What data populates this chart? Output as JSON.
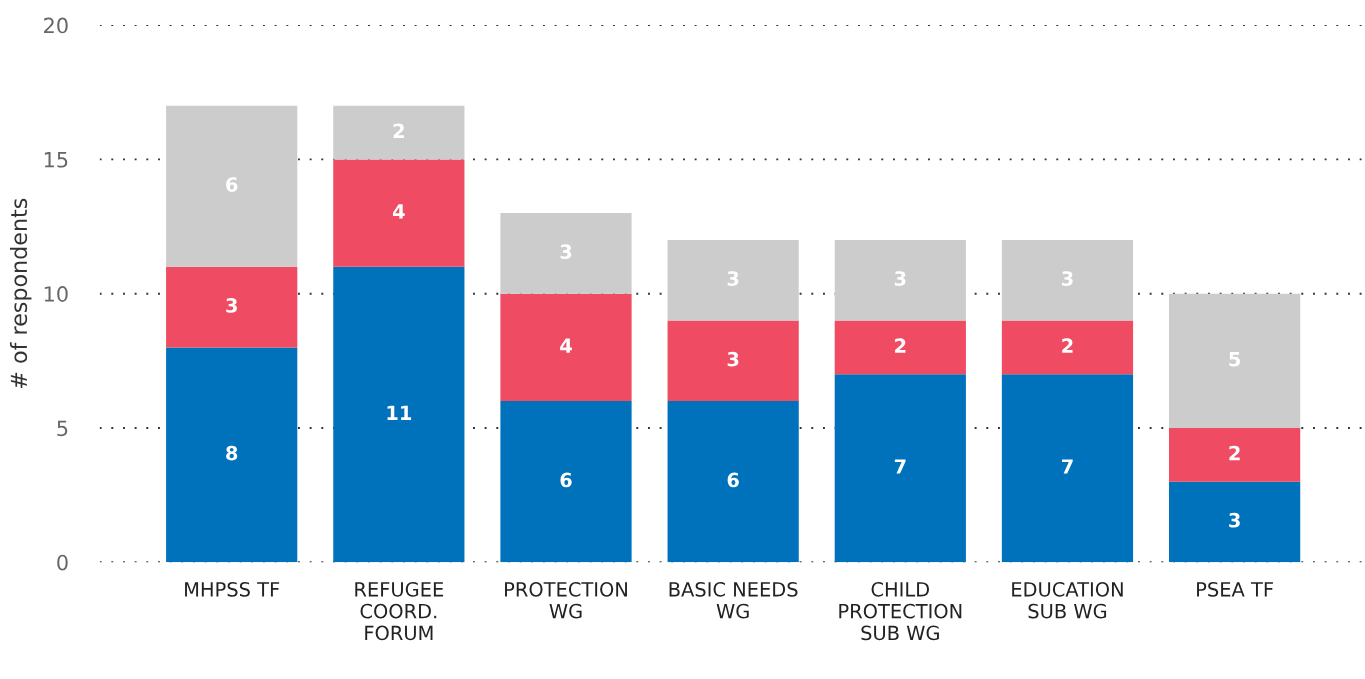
{
  "chart_data": {
    "type": "bar",
    "stacked": true,
    "ylabel": "# of respondents",
    "categories": [
      "MHPSS TF",
      "REFUGEE COORD. FORUM",
      "PROTECTION WG",
      "BASIC NEEDS WG",
      "CHILD PROTECTION SUB WG",
      "EDUCATION SUB WG",
      "PSEA TF"
    ],
    "series": [
      {
        "color": "#0072bc",
        "values": [
          8,
          11,
          6,
          6,
          7,
          7,
          3
        ]
      },
      {
        "color": "#ef4b62",
        "values": [
          3,
          4,
          4,
          3,
          2,
          2,
          2
        ]
      },
      {
        "color": "#cccccc",
        "values": [
          6,
          2,
          3,
          3,
          3,
          3,
          5
        ]
      }
    ],
    "ylim": [
      0,
      20
    ],
    "yticks": [
      0,
      5,
      10,
      15,
      20
    ],
    "grid": "y",
    "data_labels": true,
    "legend": false
  }
}
